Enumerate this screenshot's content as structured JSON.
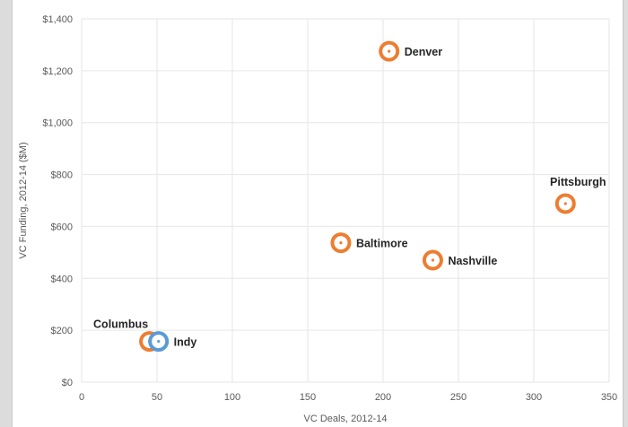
{
  "colors": {
    "orange": "#ed7d31",
    "blue": "#5b9bd5",
    "grid": "#e6e6e6",
    "text": "#595959",
    "label": "#262626"
  },
  "chart_data": {
    "type": "scatter",
    "title": "",
    "xlabel": "VC Deals, 2012-14",
    "ylabel": "VC Funding, 2012-14 ($M)",
    "xlim": [
      0,
      350
    ],
    "ylim": [
      0,
      1400
    ],
    "x_ticks": [
      0,
      50,
      100,
      150,
      200,
      250,
      300,
      350
    ],
    "x_tick_labels": [
      "0",
      "50",
      "100",
      "150",
      "200",
      "250",
      "300",
      "350"
    ],
    "y_ticks": [
      0,
      200,
      400,
      600,
      800,
      1000,
      1200,
      1400
    ],
    "y_tick_labels": [
      "$0",
      "$200",
      "$400",
      "$600",
      "$800",
      "$1,000",
      "$1,200",
      "$1,400"
    ],
    "grid": true,
    "legend": "none",
    "points": [
      {
        "label": "Denver",
        "x": 204,
        "y": 1275,
        "color": "orange",
        "label_pos": "right"
      },
      {
        "label": "Pittsburgh",
        "x": 321,
        "y": 688,
        "color": "orange",
        "label_pos": "above"
      },
      {
        "label": "Baltimore",
        "x": 172,
        "y": 537,
        "color": "orange",
        "label_pos": "right"
      },
      {
        "label": "Nashville",
        "x": 233,
        "y": 470,
        "color": "orange",
        "label_pos": "right"
      },
      {
        "label": "Columbus",
        "x": 45,
        "y": 157,
        "color": "orange",
        "label_pos": "above"
      },
      {
        "label": "Indy",
        "x": 51,
        "y": 157,
        "color": "blue",
        "label_pos": "right"
      }
    ]
  }
}
